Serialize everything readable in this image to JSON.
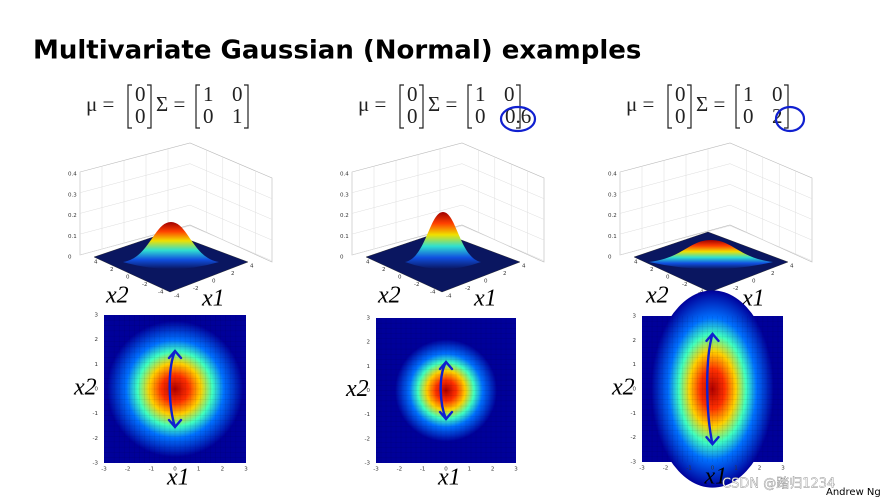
{
  "title": "Multivariate Gaussian (Normal) examples",
  "mu_label": "μ =",
  "sigma_label": "Σ =",
  "panels": [
    {
      "mu": [
        "0",
        "0"
      ],
      "sigma": [
        [
          "1",
          "0"
        ],
        [
          "0",
          "1"
        ]
      ]
    },
    {
      "mu": [
        "0",
        "0"
      ],
      "sigma": [
        [
          "1",
          "0"
        ],
        [
          "0",
          "0.6"
        ]
      ]
    },
    {
      "mu": [
        "0",
        "0"
      ],
      "sigma": [
        [
          "1",
          "0"
        ],
        [
          "0",
          "2"
        ]
      ]
    }
  ],
  "surface": {
    "z_ticks": [
      "0",
      "0.1",
      "0.2",
      "0.3",
      "0.4"
    ],
    "base_ticks": [
      "-4",
      "-2",
      "0",
      "2",
      "4"
    ]
  },
  "heatmap": {
    "ticks": [
      "-3",
      "-2",
      "-1",
      "0",
      "1",
      "2",
      "3"
    ]
  },
  "axis_labels": {
    "x1": "x1",
    "x2": "x2"
  },
  "footer": "Andrew Ng",
  "watermark": "CSDN @踏归1234"
}
